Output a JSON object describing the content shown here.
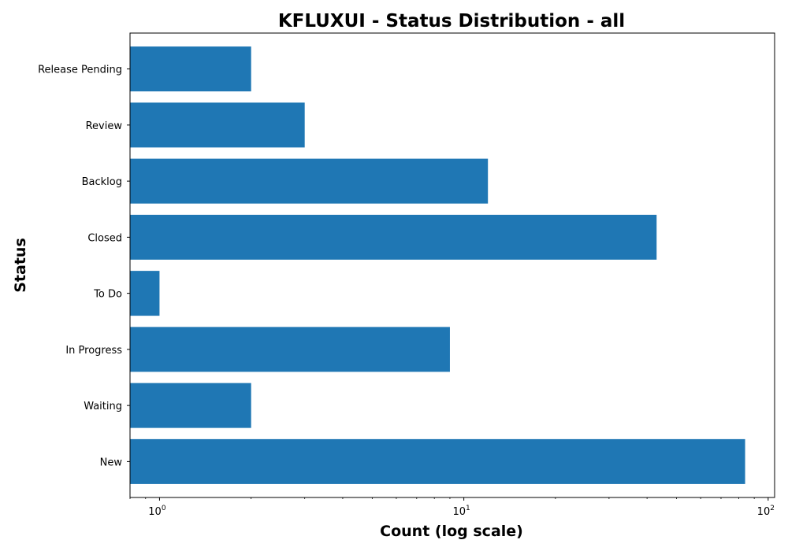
{
  "chart_data": {
    "type": "bar",
    "orientation": "horizontal",
    "title": "KFLUXUI - Status Distribution - all",
    "xlabel": "Count (log scale)",
    "ylabel": "Status",
    "xscale": "log",
    "xlim": [
      0.8,
      105
    ],
    "xticks": [
      {
        "value": 1,
        "base": "10",
        "exp": "0"
      },
      {
        "value": 10,
        "base": "10",
        "exp": "1"
      },
      {
        "value": 100,
        "base": "10",
        "exp": "2"
      }
    ],
    "categories": [
      "New",
      "Waiting",
      "In Progress",
      "To Do",
      "Closed",
      "Backlog",
      "Review",
      "Release Pending"
    ],
    "values": [
      84,
      2,
      9,
      1,
      43,
      12,
      3,
      2
    ],
    "bar_color": "#1f77b4",
    "grid": false,
    "legend": "none"
  }
}
